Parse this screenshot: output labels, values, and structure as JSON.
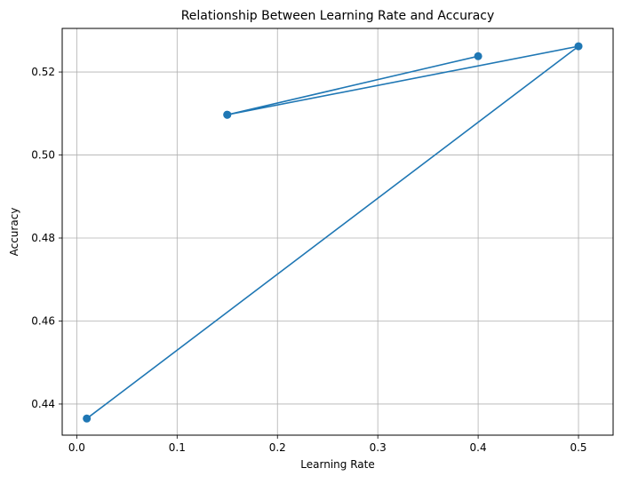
{
  "chart_data": {
    "type": "line",
    "title": "Relationship Between Learning Rate and Accuracy",
    "xlabel": "Learning Rate",
    "ylabel": "Accuracy",
    "xlim": [
      -0.0145,
      0.5345
    ],
    "ylim": [
      0.4325,
      0.5305
    ],
    "xticks": [
      0.0,
      0.1,
      0.2,
      0.3,
      0.4,
      0.5
    ],
    "xtick_labels": [
      "0.0",
      "0.1",
      "0.2",
      "0.3",
      "0.4",
      "0.5"
    ],
    "yticks": [
      0.44,
      0.46,
      0.48,
      0.5,
      0.52
    ],
    "ytick_labels": [
      "0.44",
      "0.46",
      "0.48",
      "0.50",
      "0.52"
    ],
    "grid": true,
    "markers": true,
    "series_color": "#1f77b4",
    "series": [
      {
        "points": [
          {
            "x": 0.15,
            "y": 0.5097
          },
          {
            "x": 0.4,
            "y": 0.5238
          },
          {
            "x": 0.15,
            "y": 0.5097
          },
          {
            "x": 0.5,
            "y": 0.5262
          },
          {
            "x": 0.01,
            "y": 0.4365
          }
        ]
      }
    ]
  }
}
